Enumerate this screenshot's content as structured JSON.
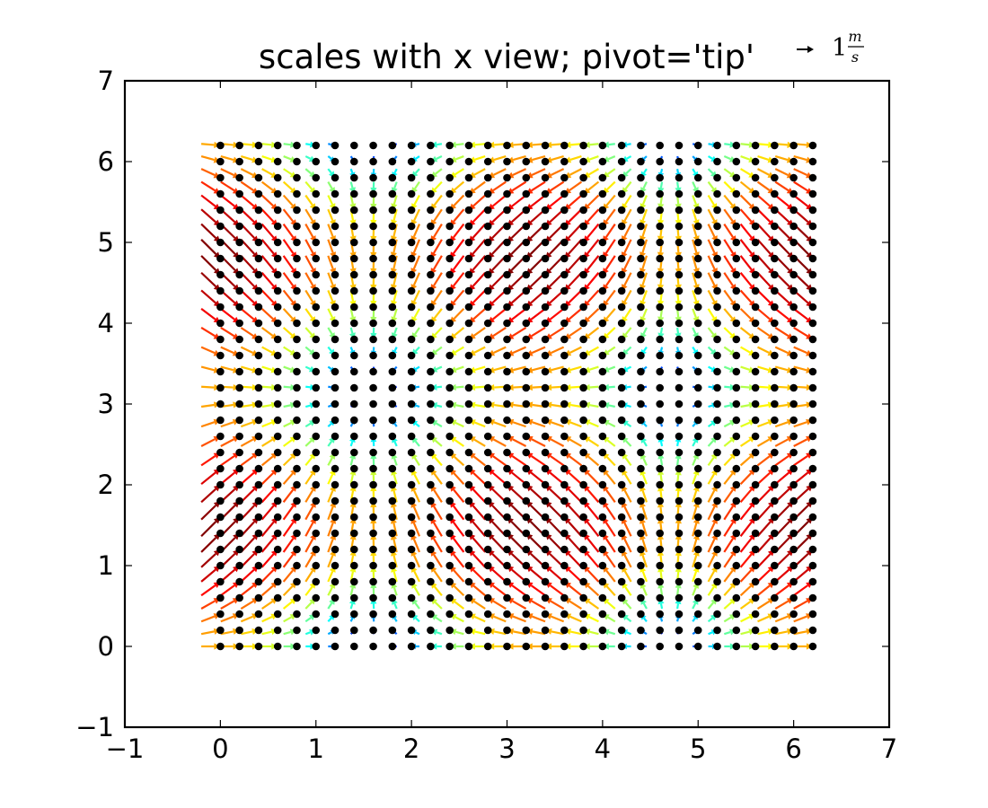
{
  "chart_data": {
    "type": "quiver",
    "title": "scales with x view; pivot='tip'",
    "xlabel": "",
    "ylabel": "",
    "xlim": [
      -1,
      7
    ],
    "ylim": [
      -1,
      7
    ],
    "xticks": [
      "−1",
      "0",
      "1",
      "2",
      "3",
      "4",
      "5",
      "6",
      "7"
    ],
    "yticks": [
      "−1",
      "0",
      "1",
      "2",
      "3",
      "4",
      "5",
      "6",
      "7"
    ],
    "grid": false,
    "field": {
      "x_start": 0,
      "x_step": 0.2,
      "x_count": 32,
      "y_start": 0,
      "y_step": 0.2,
      "y_count": 32,
      "U": "cos(x)",
      "V": "sin(y)",
      "color_by": "magnitude",
      "colormap": "jet"
    },
    "markers": {
      "shape": "dot",
      "color": "#000000",
      "at": "every grid point"
    },
    "quiverkey": {
      "length": 1,
      "label_main": "1",
      "label_num": "m",
      "label_den": "s",
      "placement": "above top-right of axes"
    }
  }
}
